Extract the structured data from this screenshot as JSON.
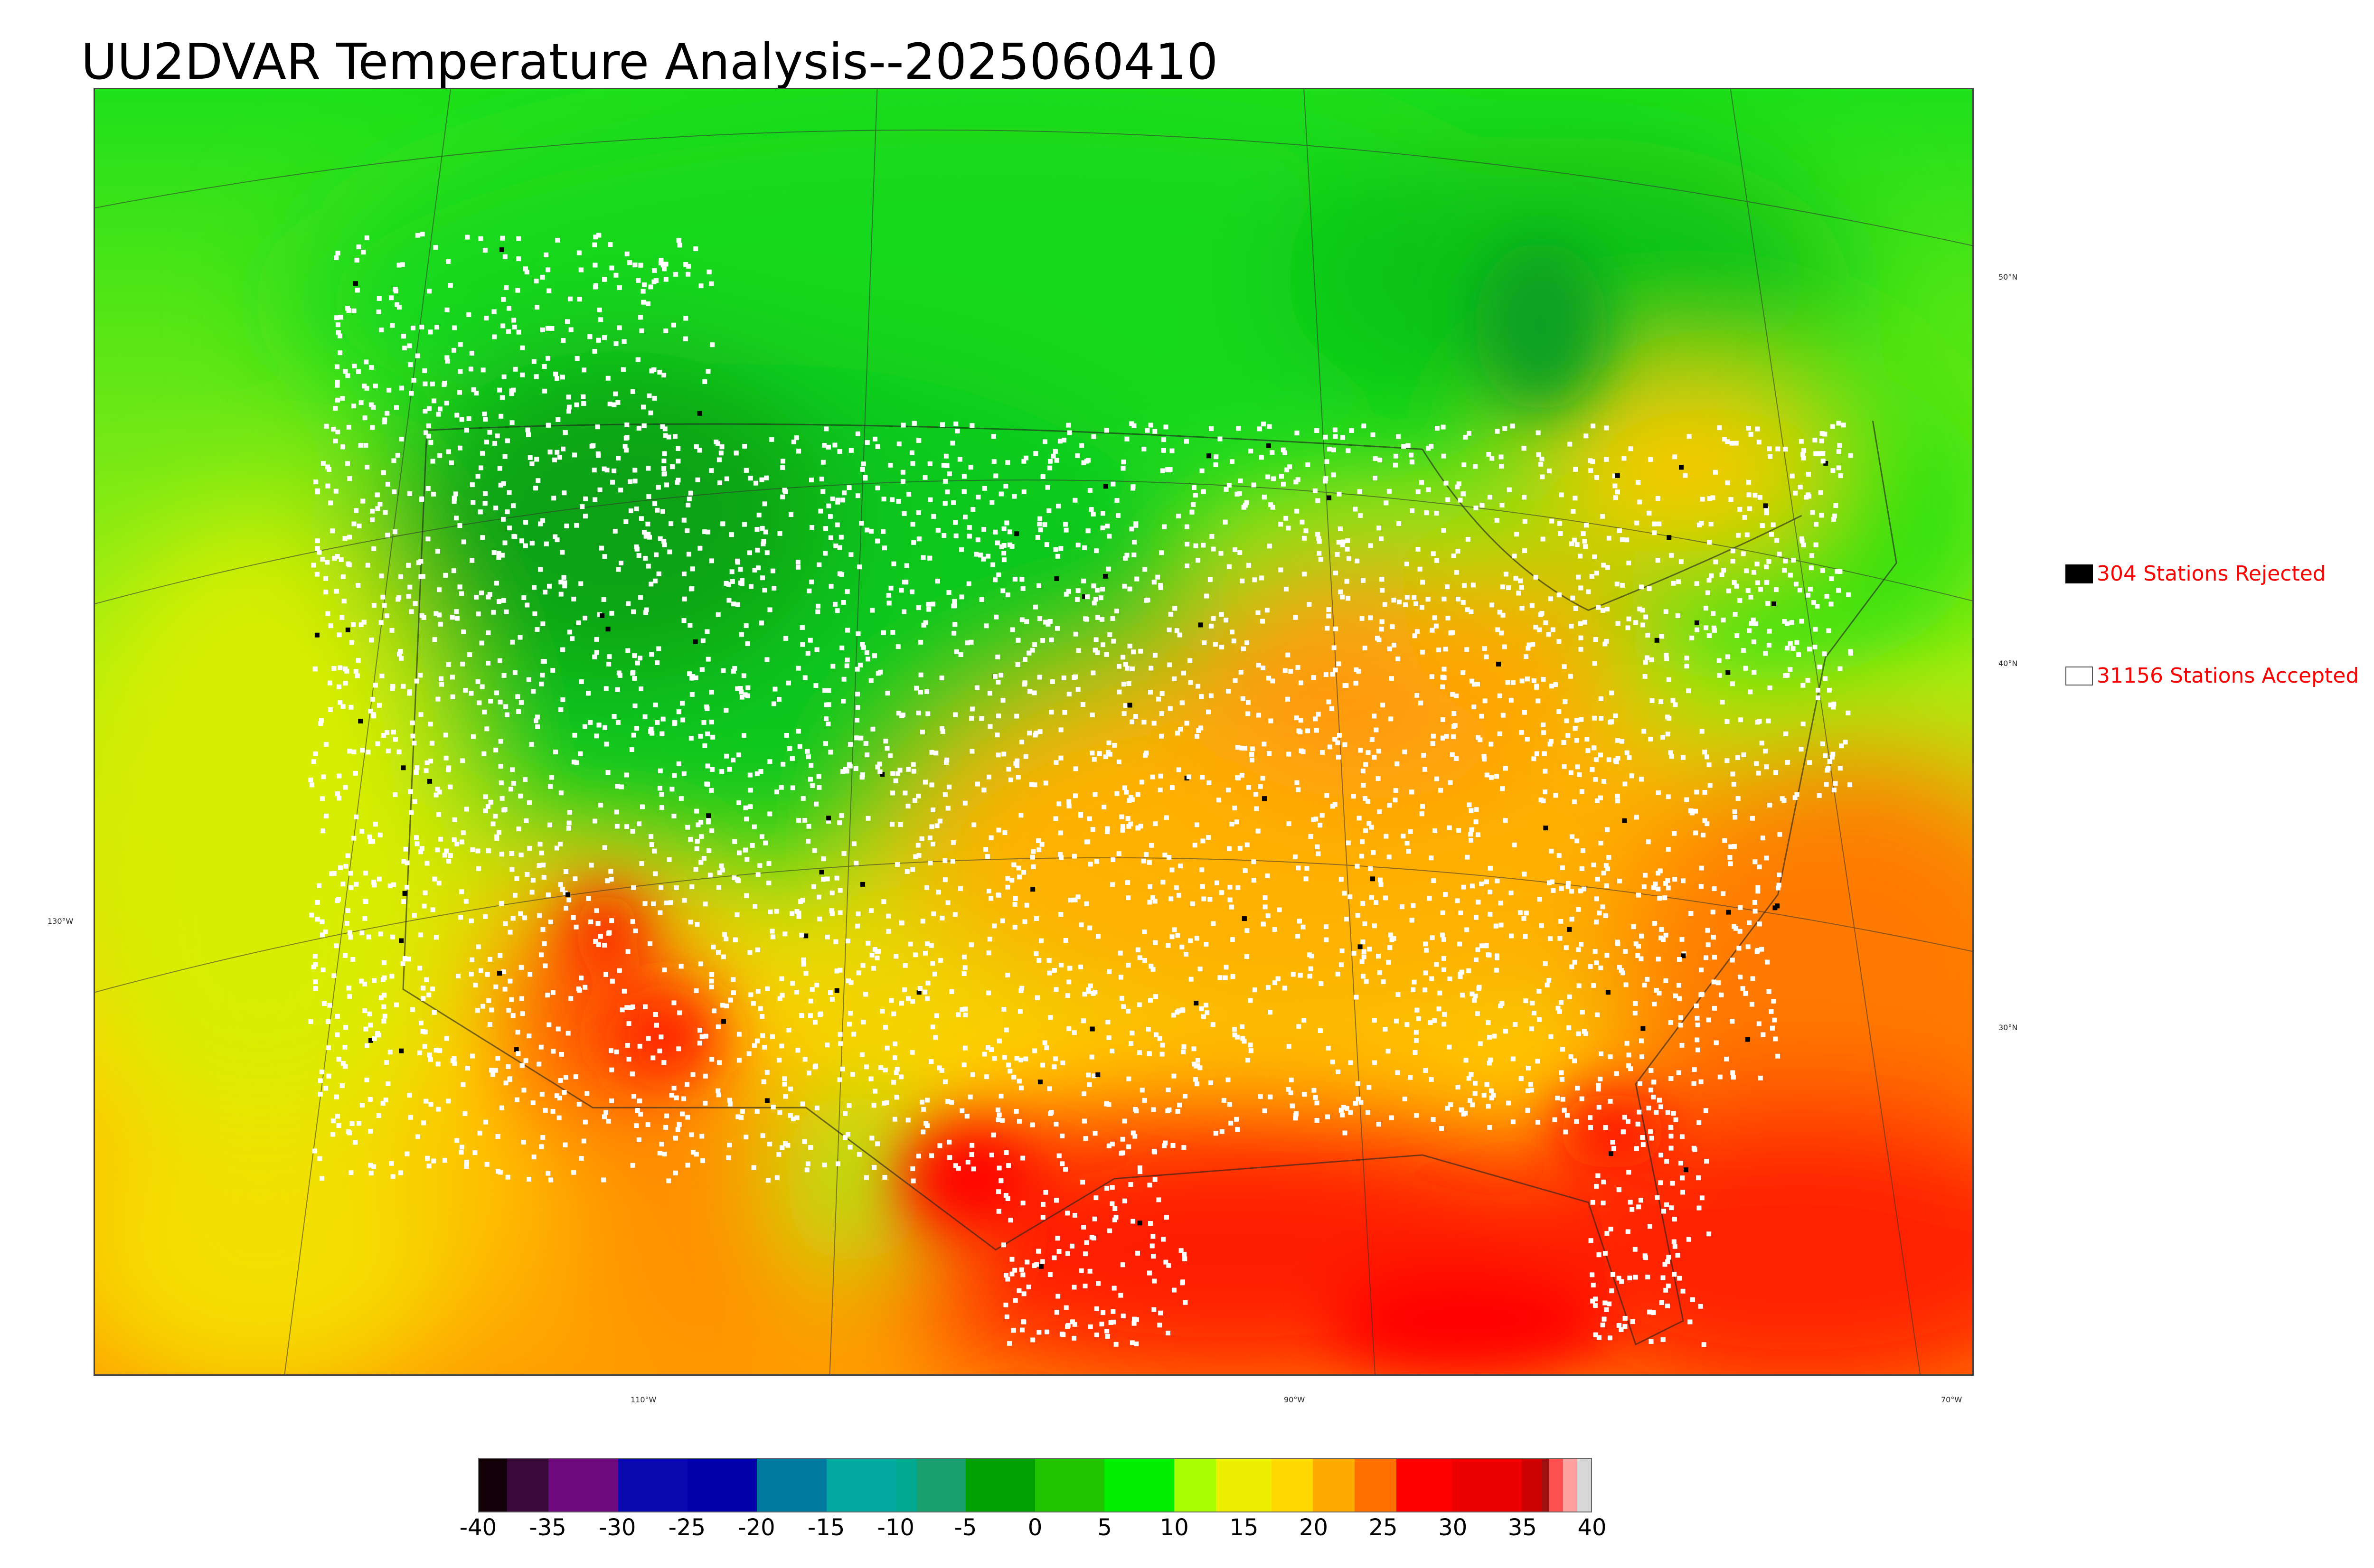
{
  "title": "UU2DVAR Temperature Analysis--2025060410",
  "map": {
    "lat_labels": [
      "50°N",
      "40°N",
      "30°N"
    ],
    "lon_labels": [
      "130°W",
      "110°W",
      "90°W",
      "70°W"
    ]
  },
  "legend": {
    "rejected": {
      "label": "304 Stations Rejected",
      "swatch_color": "#000000",
      "text_color": "#ff0000"
    },
    "accepted": {
      "label": "31156 Stations Accepted",
      "swatch_color": "#ffffff",
      "text_color": "#ff0000"
    }
  },
  "colorbar": {
    "segments": [
      {
        "from": -40,
        "to": -38,
        "color": "#140008"
      },
      {
        "from": -38,
        "to": -35,
        "color": "#3a0a3a"
      },
      {
        "from": -35,
        "to": -30,
        "color": "#6e0a7e"
      },
      {
        "from": -30,
        "to": -25,
        "color": "#0a0ab0"
      },
      {
        "from": -25,
        "to": -20,
        "color": "#0000a8"
      },
      {
        "from": -20,
        "to": -15,
        "color": "#007aa0"
      },
      {
        "from": -15,
        "to": -10,
        "color": "#00a8a0"
      },
      {
        "from": -10,
        "to": -8.5,
        "color": "#00a890"
      },
      {
        "from": -8.5,
        "to": -5,
        "color": "#1aa070"
      },
      {
        "from": -5,
        "to": 0,
        "color": "#00a000"
      },
      {
        "from": 0,
        "to": 5,
        "color": "#22c400"
      },
      {
        "from": 5,
        "to": 10,
        "color": "#00ee00"
      },
      {
        "from": 10,
        "to": 13,
        "color": "#a8ff00"
      },
      {
        "from": 13,
        "to": 17,
        "color": "#ecf000"
      },
      {
        "from": 17,
        "to": 20,
        "color": "#ffd800"
      },
      {
        "from": 20,
        "to": 23,
        "color": "#ffaa00"
      },
      {
        "from": 23,
        "to": 26,
        "color": "#ff7000"
      },
      {
        "from": 26,
        "to": 30,
        "color": "#ff0000"
      },
      {
        "from": 30,
        "to": 35,
        "color": "#ee0000"
      },
      {
        "from": 35,
        "to": 36.5,
        "color": "#cc0000"
      },
      {
        "from": 36.5,
        "to": 37,
        "color": "#a01010"
      },
      {
        "from": 37,
        "to": 38,
        "color": "#ff5050"
      },
      {
        "from": 38,
        "to": 39,
        "color": "#ffa0a0"
      },
      {
        "from": 39,
        "to": 40,
        "color": "#d8d8d8"
      }
    ],
    "ticks": [
      "-40",
      "-35",
      "-30",
      "-25",
      "-20",
      "-15",
      "-10",
      "-5",
      "0",
      "5",
      "10",
      "15",
      "20",
      "25",
      "30",
      "35",
      "40"
    ]
  }
}
